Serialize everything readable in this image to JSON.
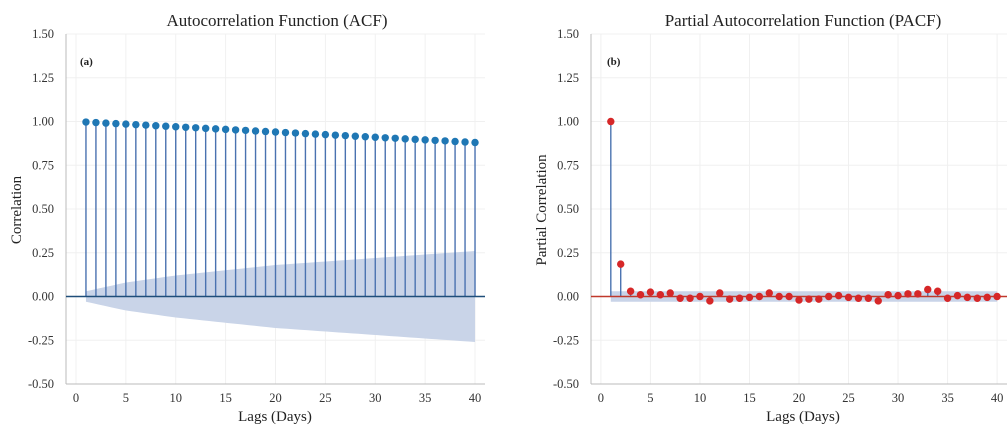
{
  "chart_data": [
    {
      "type": "stem",
      "title": "Autocorrelation Function (ACF)",
      "panel_label": "(a)",
      "xlabel": "Lags (Days)",
      "ylabel": "Correlation",
      "xlim": [
        -1,
        41
      ],
      "ylim": [
        -0.5,
        1.5
      ],
      "xticks": [
        0,
        5,
        10,
        15,
        20,
        25,
        30,
        35,
        40
      ],
      "yticks": [
        -0.5,
        -0.25,
        0.0,
        0.25,
        0.5,
        0.75,
        1.0,
        1.25,
        1.5
      ],
      "ytick_labels": [
        "-0.50",
        "-0.25",
        "0.00",
        "0.25",
        "0.50",
        "0.75",
        "1.00",
        "1.25",
        "1.50"
      ],
      "grid": true,
      "colors": {
        "marker": "#1f77b4",
        "stem": "#4a72b0",
        "band": "#c9d4e8",
        "baseline": "#1f4e79"
      },
      "confidence_band": {
        "x": [
          1,
          5,
          10,
          15,
          20,
          25,
          30,
          35,
          40
        ],
        "upper": [
          0.03,
          0.08,
          0.12,
          0.15,
          0.18,
          0.2,
          0.22,
          0.24,
          0.26
        ],
        "lower": [
          -0.03,
          -0.08,
          -0.12,
          -0.15,
          -0.18,
          -0.2,
          -0.22,
          -0.24,
          -0.26
        ]
      },
      "x": [
        1,
        2,
        3,
        4,
        5,
        6,
        7,
        8,
        9,
        10,
        11,
        12,
        13,
        14,
        15,
        16,
        17,
        18,
        19,
        20,
        21,
        22,
        23,
        24,
        25,
        26,
        27,
        28,
        29,
        30,
        31,
        32,
        33,
        34,
        35,
        36,
        37,
        38,
        39,
        40
      ],
      "values": [
        0.997,
        0.994,
        0.991,
        0.988,
        0.985,
        0.982,
        0.979,
        0.976,
        0.973,
        0.97,
        0.967,
        0.964,
        0.961,
        0.958,
        0.955,
        0.952,
        0.949,
        0.946,
        0.943,
        0.94,
        0.937,
        0.934,
        0.931,
        0.928,
        0.925,
        0.922,
        0.919,
        0.916,
        0.913,
        0.91,
        0.907,
        0.904,
        0.901,
        0.898,
        0.895,
        0.892,
        0.889,
        0.886,
        0.883,
        0.88
      ]
    },
    {
      "type": "stem",
      "title": "Partial Autocorrelation Function (PACF)",
      "panel_label": "(b)",
      "xlabel": "Lags (Days)",
      "ylabel": "Partial Correlation",
      "xlim": [
        -1,
        41
      ],
      "ylim": [
        -0.5,
        1.5
      ],
      "xticks": [
        0,
        5,
        10,
        15,
        20,
        25,
        30,
        35,
        40
      ],
      "yticks": [
        -0.5,
        -0.25,
        0.0,
        0.25,
        0.5,
        0.75,
        1.0,
        1.25,
        1.5
      ],
      "ytick_labels": [
        "-0.50",
        "-0.25",
        "0.00",
        "0.25",
        "0.50",
        "0.75",
        "1.00",
        "1.25",
        "1.50"
      ],
      "grid": true,
      "colors": {
        "marker": "#d62728",
        "stem": "#4a72b0",
        "band": "#c9d4e8",
        "baseline": "#c0392b"
      },
      "confidence_band": {
        "x": [
          1,
          40
        ],
        "upper": [
          0.03,
          0.03
        ],
        "lower": [
          -0.03,
          -0.03
        ]
      },
      "x": [
        1,
        2,
        3,
        4,
        5,
        6,
        7,
        8,
        9,
        10,
        11,
        12,
        13,
        14,
        15,
        16,
        17,
        18,
        19,
        20,
        21,
        22,
        23,
        24,
        25,
        26,
        27,
        28,
        29,
        30,
        31,
        32,
        33,
        34,
        35,
        36,
        37,
        38,
        39,
        40
      ],
      "values": [
        1.0,
        0.185,
        0.03,
        0.01,
        0.025,
        0.01,
        0.02,
        -0.01,
        -0.01,
        0.0,
        -0.025,
        0.02,
        -0.015,
        -0.01,
        -0.005,
        0.0,
        0.02,
        0.0,
        0.0,
        -0.02,
        -0.015,
        -0.015,
        0.0,
        0.005,
        -0.005,
        -0.01,
        -0.01,
        -0.025,
        0.01,
        0.005,
        0.015,
        0.015,
        0.04,
        0.03,
        -0.01,
        0.005,
        -0.005,
        -0.01,
        -0.005,
        0.0
      ]
    }
  ]
}
